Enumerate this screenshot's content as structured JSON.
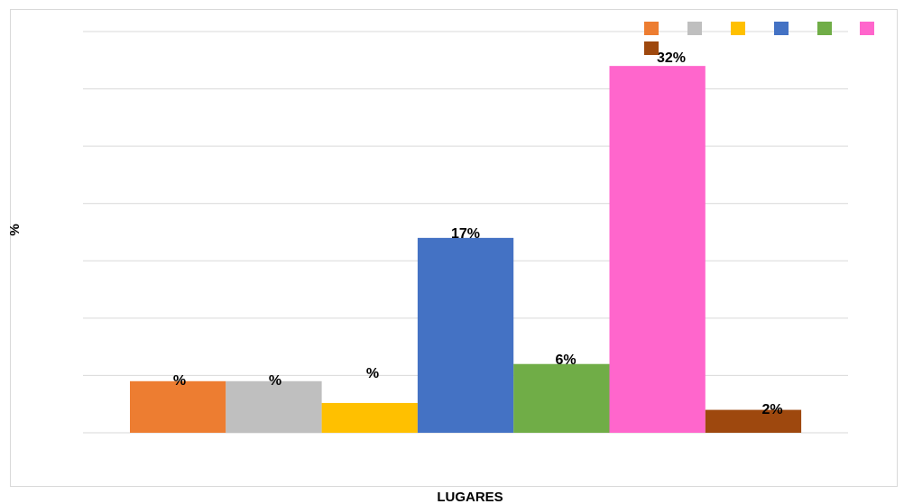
{
  "chart_data": {
    "type": "bar",
    "xlabel": "LUGARES",
    "ylabel": "%",
    "ylim": [
      0,
      35
    ],
    "grid": true,
    "legend_position": "top-right",
    "series": [
      {
        "color": "#ED7D31",
        "value": 4.5,
        "label": "%"
      },
      {
        "color": "#BFBFBF",
        "value": 4.5,
        "label": "%"
      },
      {
        "color": "#FFC000",
        "value": 2.6,
        "label": "%"
      },
      {
        "color": "#4472C4",
        "value": 17,
        "label": "17%"
      },
      {
        "color": "#70AD47",
        "value": 6,
        "label": "6%"
      },
      {
        "color": "#FF66CC",
        "value": 32,
        "label": "32%"
      },
      {
        "color": "#9E480E",
        "value": 2,
        "label": "2%"
      }
    ]
  }
}
